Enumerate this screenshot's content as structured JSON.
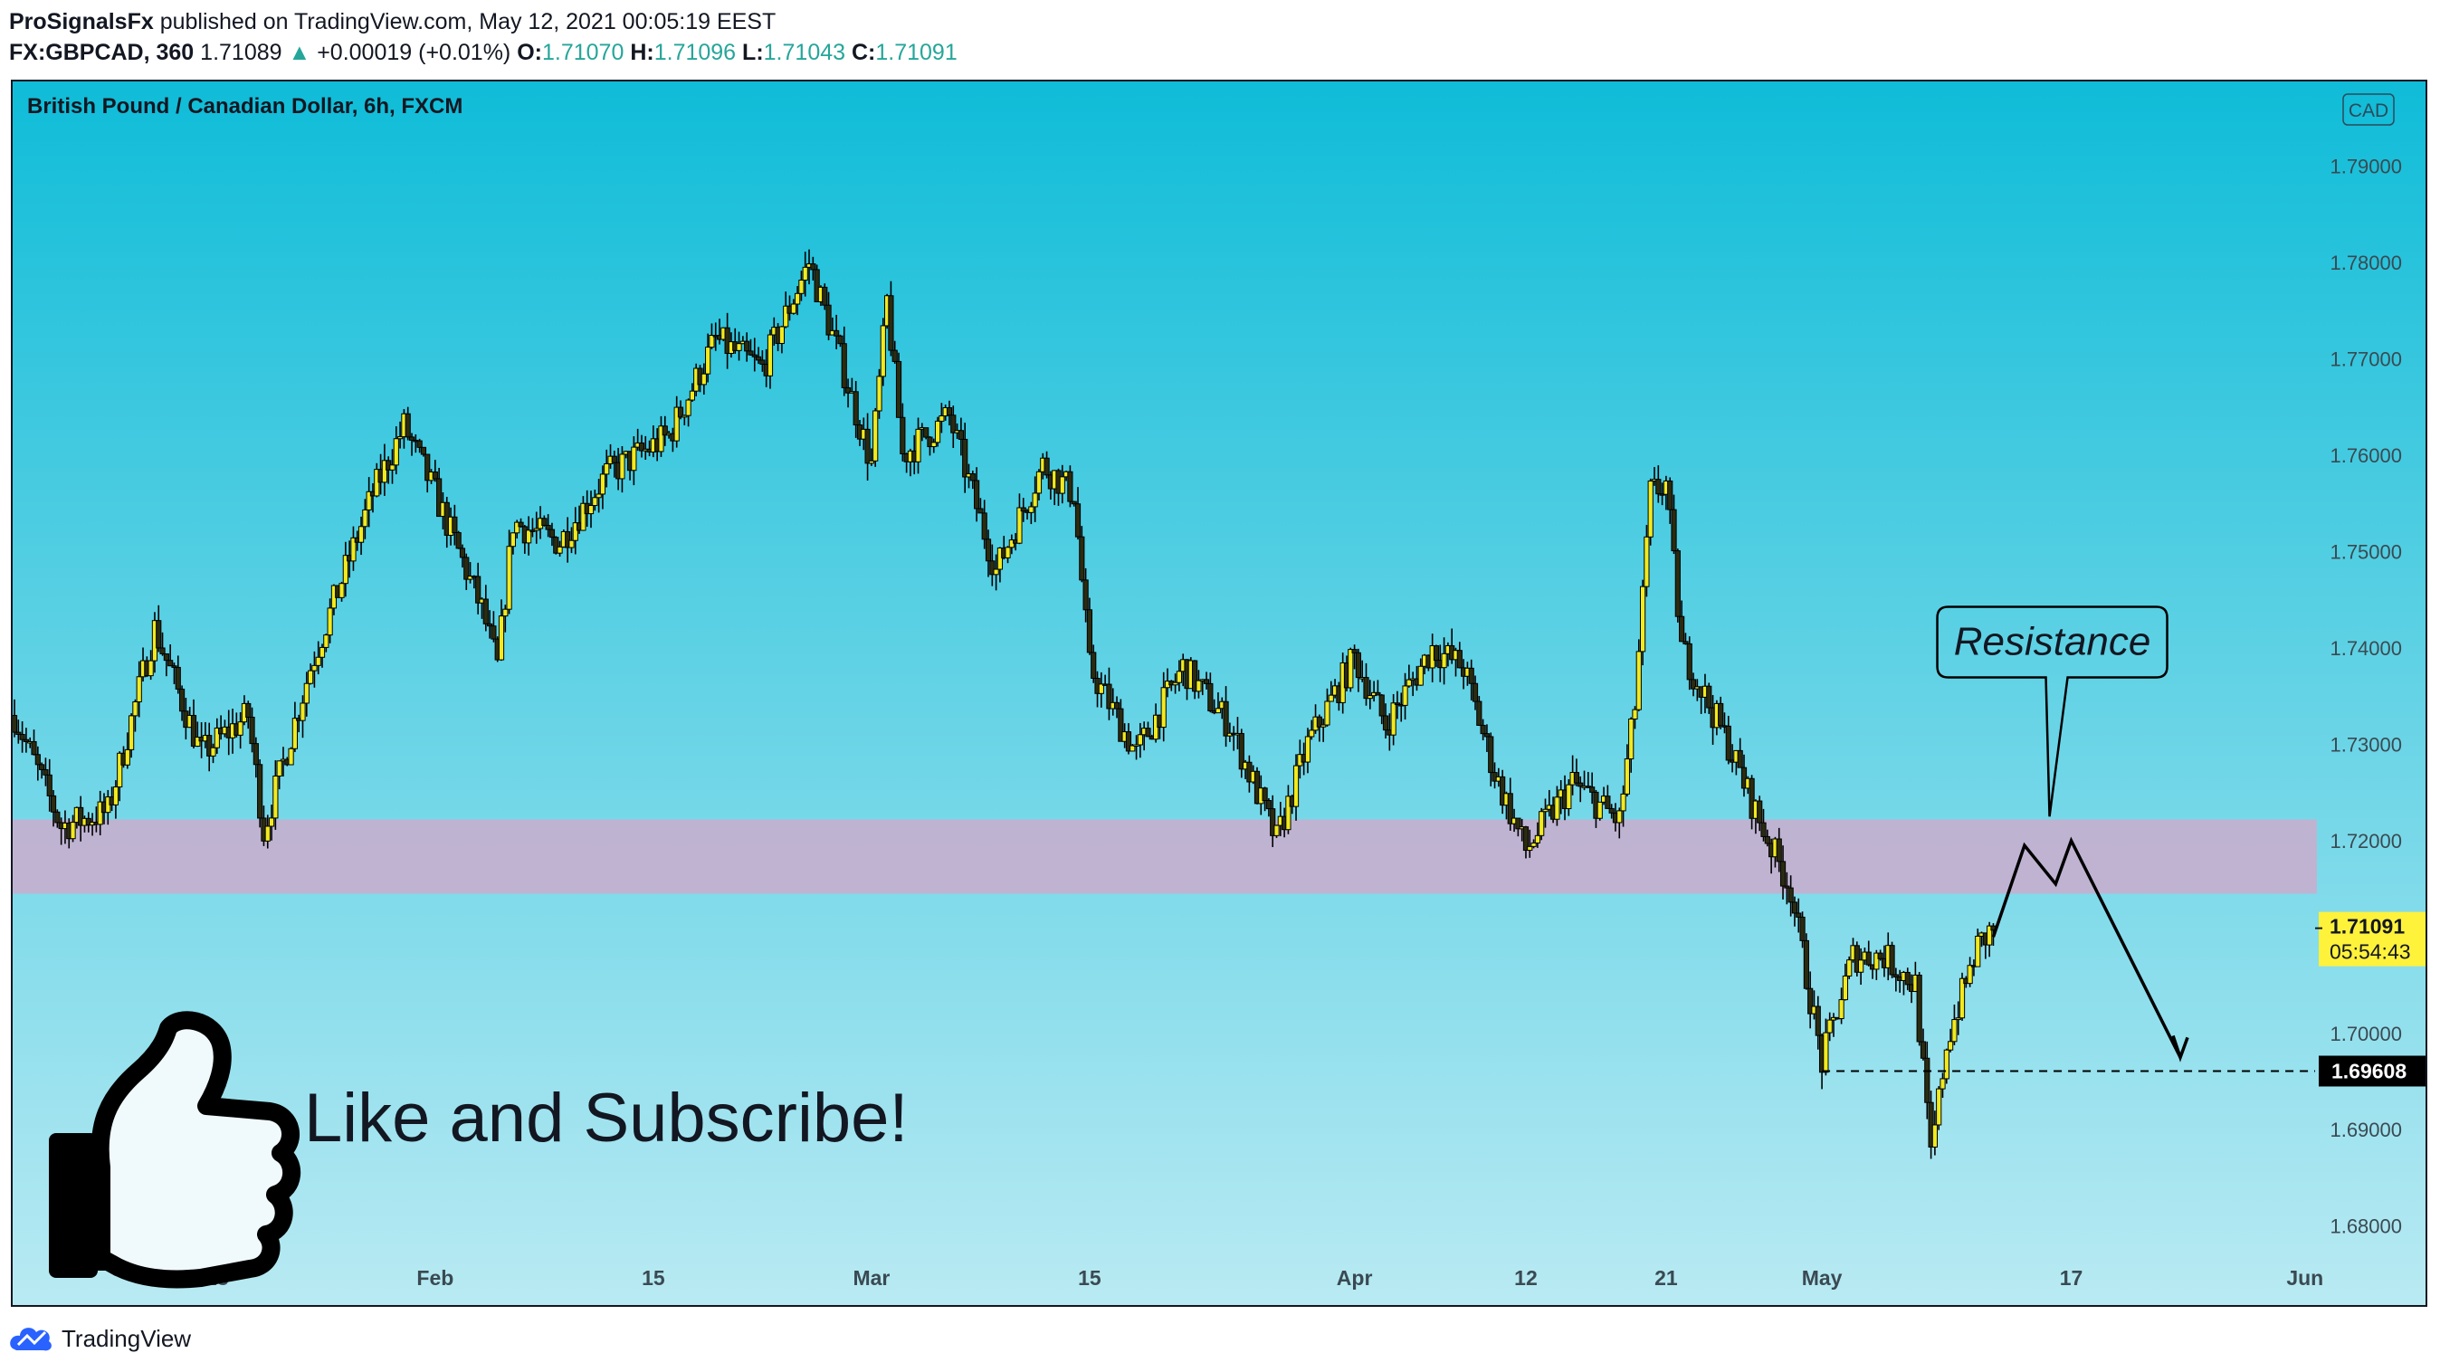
{
  "header": {
    "publisher": "ProSignalsFx",
    "published_text": " published on TradingView.com, May 12, 2021 00:05:19 EEST",
    "symbol": "FX:GBPCAD, 360",
    "last": "1.71089",
    "change": "+0.00019 (+0.01%)",
    "o_label": "O:",
    "o_value": "1.71070",
    "h_label": "H:",
    "h_value": "1.71096",
    "l_label": "L:",
    "l_value": "1.71043",
    "c_label": "C:",
    "c_value": "1.71091"
  },
  "chart_title": "British Pound / Canadian Dollar, 6h, FXCM",
  "currency_badge": "CAD",
  "price_label": {
    "value": "1.71091",
    "countdown": "05:54:43"
  },
  "target_label": "1.69608",
  "resistance_text": "Resistance",
  "promo_text": "Like and Subscribe!",
  "footer_brand": "TradingView",
  "colors": {
    "bg_top": "#0fbcd8",
    "bg_bottom": "#b9eaf3",
    "zone": "#c6b0cf",
    "candle": "#f2ea1e",
    "wick": "#000000",
    "price_tag": "#fff23b",
    "target_tag": "#000000"
  },
  "icons": [
    "thumbs-up-icon",
    "tradingview-logo-icon"
  ],
  "chart_data": {
    "type": "candlestick",
    "title": "British Pound / Canadian Dollar, 6h, FXCM",
    "y_ticks": [
      1.79,
      1.78,
      1.77,
      1.76,
      1.75,
      1.74,
      1.73,
      1.72,
      1.71,
      1.7,
      1.69,
      1.68
    ],
    "y_tick_labels": [
      "1.79000",
      "1.78000",
      "1.77000",
      "1.76000",
      "1.75000",
      "1.74000",
      "1.73000",
      "1.72000",
      "1.71000",
      "1.70000",
      "1.69000",
      "1.68000"
    ],
    "ylim": [
      1.6733,
      1.7973
    ],
    "x_ticks": [
      {
        "label": "18",
        "date": "2021-01-18"
      },
      {
        "label": "Feb",
        "date": "2021-02-01"
      },
      {
        "label": "15",
        "date": "2021-02-15"
      },
      {
        "label": "Mar",
        "date": "2021-03-01"
      },
      {
        "label": "15",
        "date": "2021-03-15"
      },
      {
        "label": "Apr",
        "date": "2021-04-01"
      },
      {
        "label": "12",
        "date": "2021-04-12"
      },
      {
        "label": "21",
        "date": "2021-04-21"
      },
      {
        "label": "May",
        "date": "2021-05-01"
      },
      {
        "label": "17",
        "date": "2021-05-17"
      },
      {
        "label": "Jun",
        "date": "2021-06-01"
      }
    ],
    "xlim": [
      "2021-01-05",
      "2021-06-02"
    ],
    "trend_path": [
      [
        "2021-01-05",
        1.733
      ],
      [
        "2021-01-08",
        1.7215
      ],
      [
        "2021-01-11",
        1.723
      ],
      [
        "2021-01-14",
        1.742
      ],
      [
        "2021-01-17",
        1.729
      ],
      [
        "2021-01-20",
        1.733
      ],
      [
        "2021-01-21",
        1.721
      ],
      [
        "2021-01-24",
        1.738
      ],
      [
        "2021-01-28",
        1.756
      ],
      [
        "2021-01-30",
        1.763
      ],
      [
        "2021-02-01",
        1.756
      ],
      [
        "2021-02-04",
        1.744
      ],
      [
        "2021-02-05",
        1.738
      ],
      [
        "2021-02-06",
        1.753
      ],
      [
        "2021-02-09",
        1.751
      ],
      [
        "2021-02-12",
        1.758
      ],
      [
        "2021-02-16",
        1.762
      ],
      [
        "2021-02-19",
        1.772
      ],
      [
        "2021-02-22",
        1.769
      ],
      [
        "2021-02-25",
        1.78
      ],
      [
        "2021-02-27",
        1.77
      ],
      [
        "2021-03-01",
        1.759
      ],
      [
        "2021-03-02",
        1.776
      ],
      [
        "2021-03-03",
        1.76
      ],
      [
        "2021-03-06",
        1.764
      ],
      [
        "2021-03-09",
        1.748
      ],
      [
        "2021-03-12",
        1.759
      ],
      [
        "2021-03-14",
        1.756
      ],
      [
        "2021-03-15",
        1.738
      ],
      [
        "2021-03-18",
        1.729
      ],
      [
        "2021-03-21",
        1.738
      ],
      [
        "2021-03-24",
        1.732
      ],
      [
        "2021-03-27",
        1.72
      ],
      [
        "2021-03-29",
        1.73
      ],
      [
        "2021-04-01",
        1.739
      ],
      [
        "2021-04-03",
        1.732
      ],
      [
        "2021-04-06",
        1.74
      ],
      [
        "2021-04-08",
        1.738
      ],
      [
        "2021-04-10",
        1.727
      ],
      [
        "2021-04-12",
        1.719
      ],
      [
        "2021-04-15",
        1.726
      ],
      [
        "2021-04-18",
        1.722
      ],
      [
        "2021-04-19",
        1.734
      ],
      [
        "2021-04-20",
        1.756
      ],
      [
        "2021-04-21",
        1.757
      ],
      [
        "2021-04-22",
        1.74
      ],
      [
        "2021-04-25",
        1.73
      ],
      [
        "2021-04-27",
        1.722
      ],
      [
        "2021-04-29",
        1.715
      ],
      [
        "2021-05-01",
        1.697
      ],
      [
        "2021-05-03",
        1.708
      ],
      [
        "2021-05-05",
        1.708
      ],
      [
        "2021-05-07",
        1.705
      ],
      [
        "2021-05-08",
        1.687
      ],
      [
        "2021-05-09",
        1.699
      ],
      [
        "2021-05-11",
        1.709
      ],
      [
        "2021-05-12",
        1.7109
      ]
    ],
    "annotations": {
      "resistance_zone": [
        1.7145,
        1.7222
      ],
      "projection_path": [
        [
          "2021-05-12",
          1.71
        ],
        [
          "2021-05-14",
          1.7195
        ],
        [
          "2021-05-16",
          1.7155
        ],
        [
          "2021-05-17",
          1.72
        ],
        [
          "2021-05-24",
          1.6975
        ]
      ],
      "target_line": {
        "value": 1.69608,
        "from": "2021-05-01",
        "to": "2021-06-02"
      },
      "last_price": 1.71091
    },
    "xlabel": "",
    "ylabel": "",
    "grid": false
  }
}
